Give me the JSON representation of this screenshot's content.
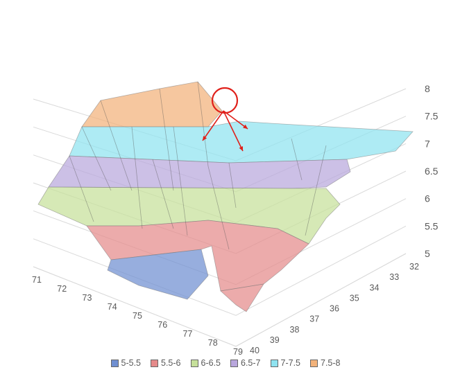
{
  "chart_data": {
    "type": "surface-3d",
    "z_axis": {
      "ticks": [
        "5",
        "5.5",
        "6",
        "6.5",
        "7",
        "7.5",
        "8"
      ],
      "range": [
        5,
        8
      ]
    },
    "x_axis": {
      "ticks": [
        "71",
        "72",
        "73",
        "74",
        "75",
        "76",
        "77",
        "78",
        "79"
      ]
    },
    "y_axis": {
      "ticks": [
        "32",
        "33",
        "34",
        "35",
        "36",
        "37",
        "38",
        "39",
        "40"
      ]
    },
    "legend": [
      {
        "label": "5-5.5",
        "color": "#6f8fd1"
      },
      {
        "label": "5.5-6",
        "color": "#e58a8a"
      },
      {
        "label": "6-6.5",
        "color": "#c6e09a"
      },
      {
        "label": "6.5-7",
        "color": "#b9a7dd"
      },
      {
        "label": "7-7.5",
        "color": "#8fe3f0"
      },
      {
        "label": "7.5-8",
        "color": "#f2b27a"
      }
    ],
    "legend_position": "bottom",
    "grid": true,
    "annotations": [
      {
        "type": "circle",
        "color": "#e0201a"
      },
      {
        "type": "arrows",
        "count": 3,
        "color": "#e0201a"
      }
    ]
  }
}
